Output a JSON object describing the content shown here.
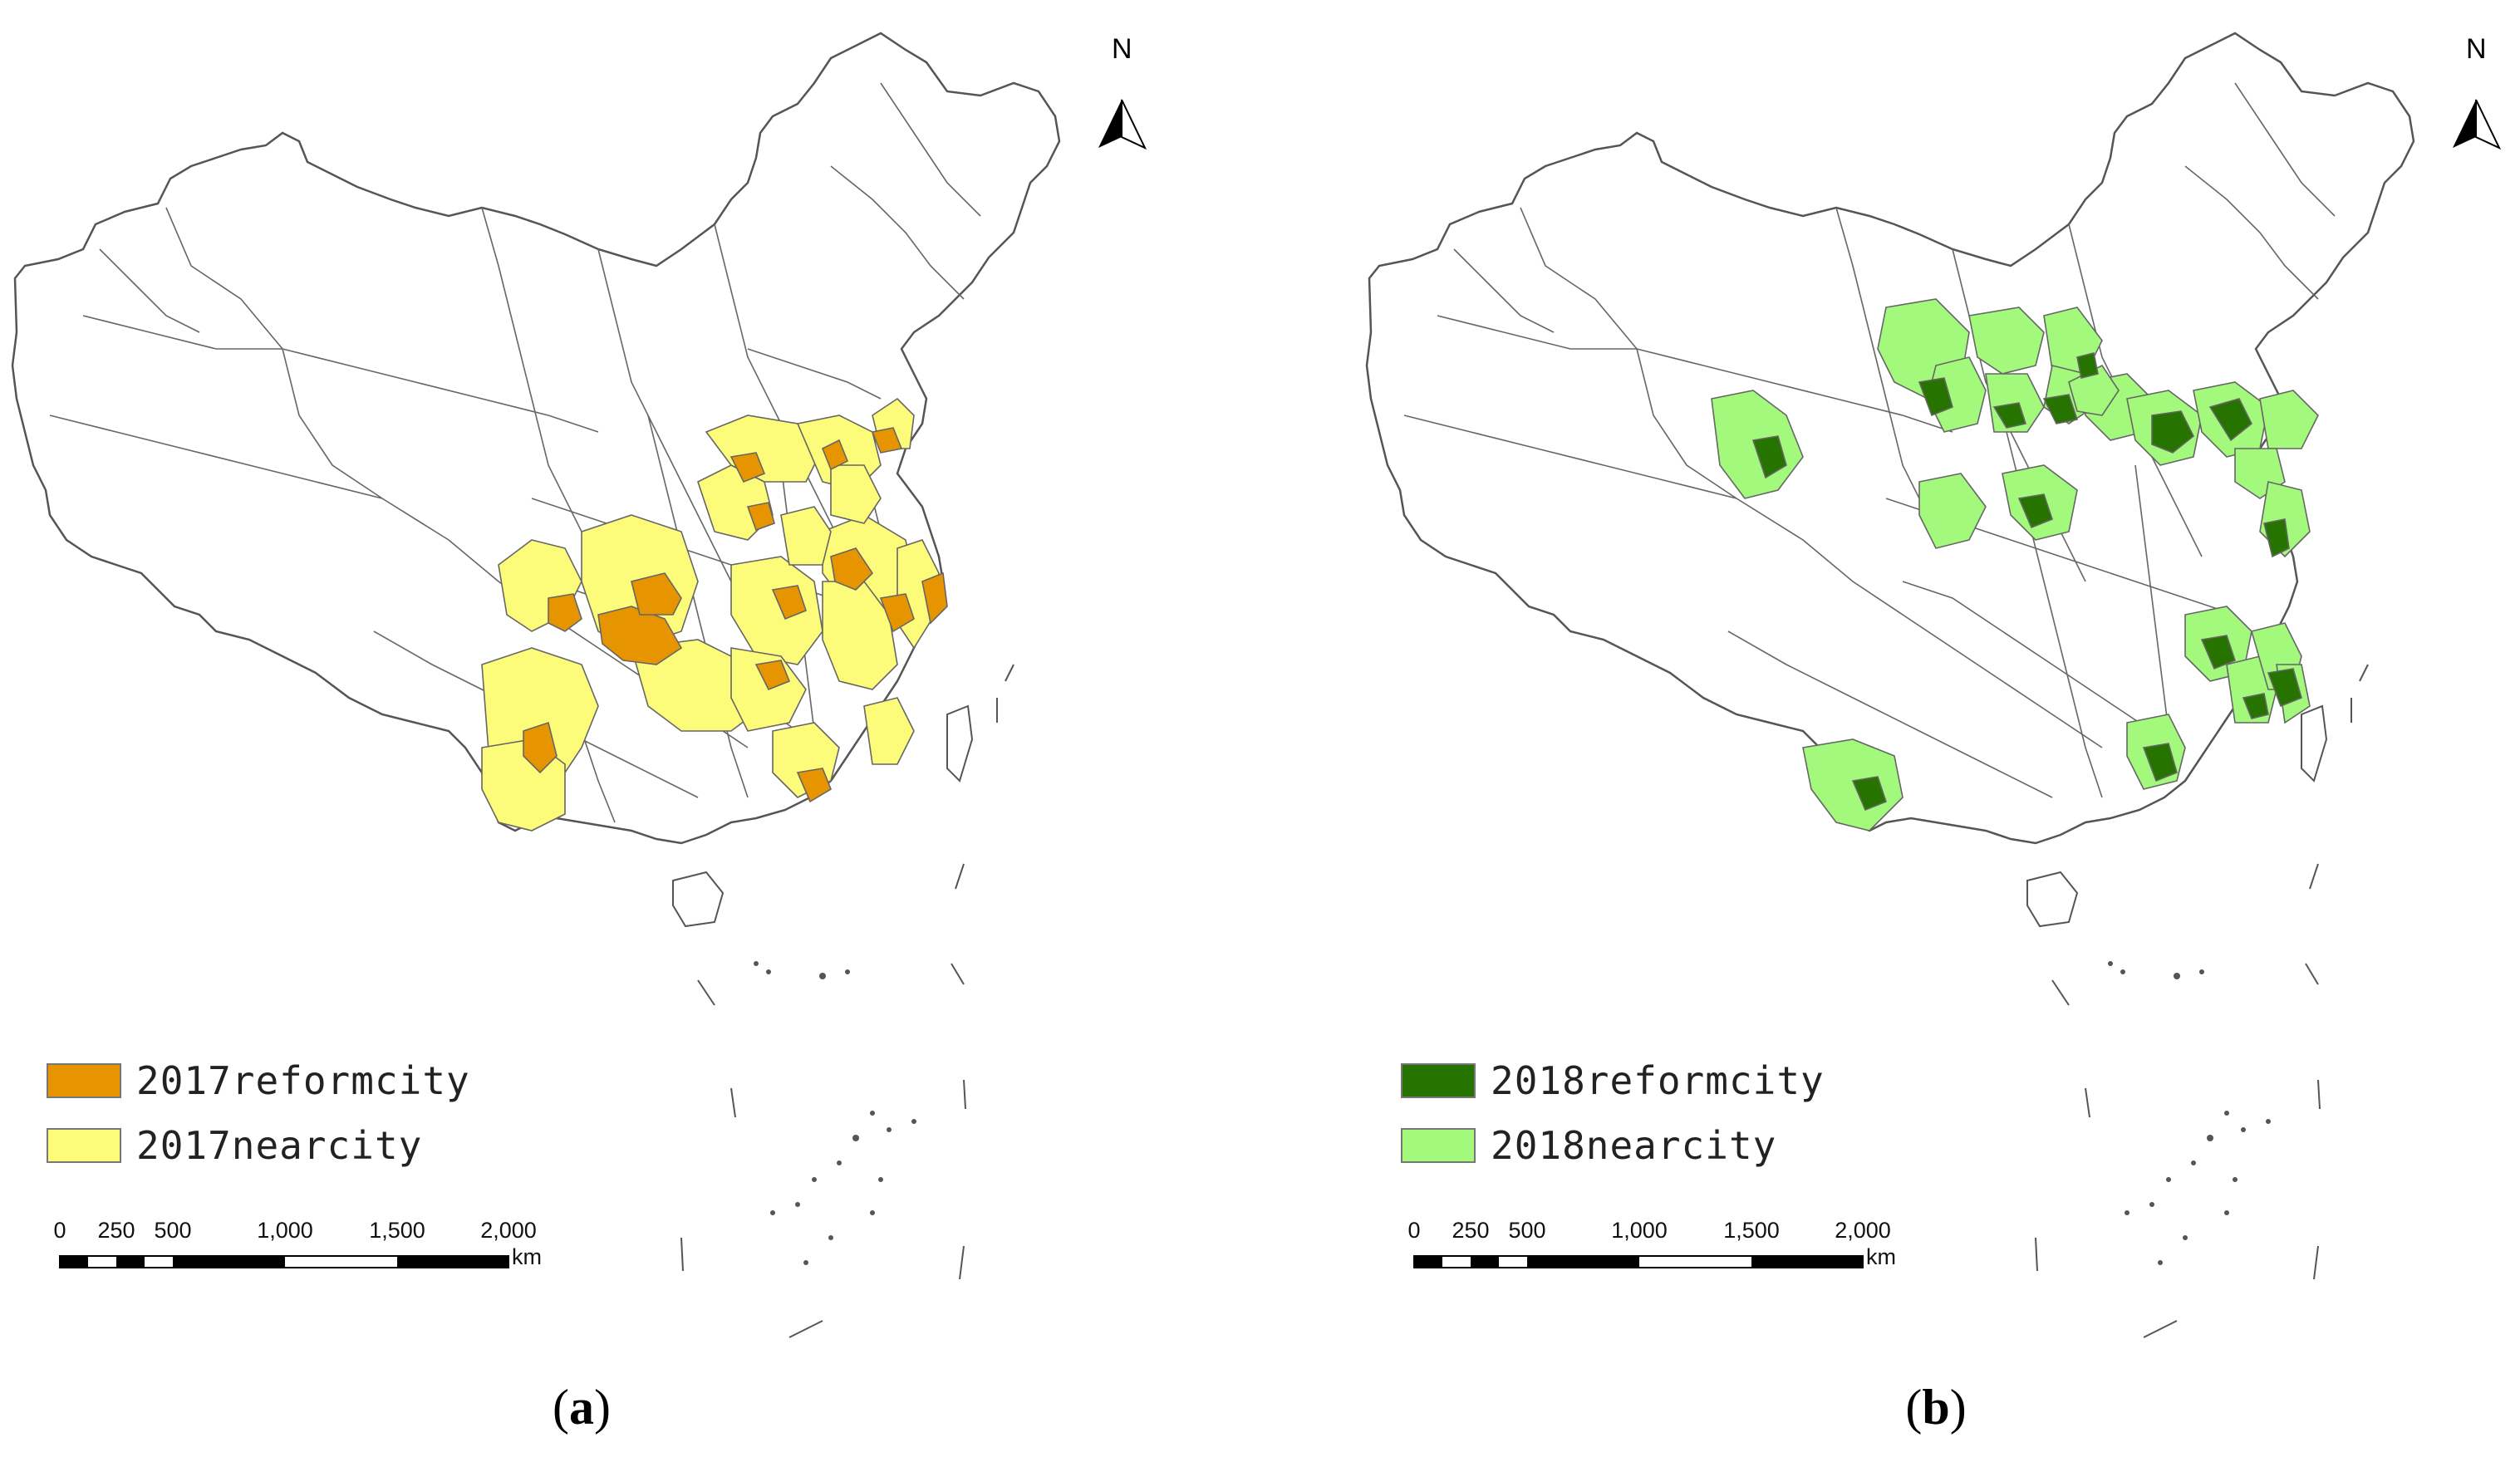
{
  "panels": [
    {
      "id": "a",
      "caption_open": "(",
      "caption_letter": "a",
      "caption_close": ")",
      "north_label": "N",
      "legend": [
        {
          "label": "2017reformcity",
          "color": "#e69500"
        },
        {
          "label": "2017nearcity",
          "color": "#fdfc7a"
        }
      ],
      "scale": {
        "labels": [
          "0",
          "250",
          "500",
          "1,000",
          "1,500",
          "2,000"
        ],
        "unit": "km"
      }
    },
    {
      "id": "b",
      "caption_open": "(",
      "caption_letter": "b",
      "caption_close": ")",
      "north_label": "N",
      "legend": [
        {
          "label": "2018reformcity",
          "color": "#267300"
        },
        {
          "label": "2018nearcity",
          "color": "#a3f97c"
        }
      ],
      "scale": {
        "labels": [
          "0",
          "250",
          "500",
          "1,000",
          "1,500",
          "2,000"
        ],
        "unit": "km"
      }
    }
  ],
  "colors": {
    "boundary": "#555555",
    "land": "#ffffff",
    "background": "#ffffff"
  }
}
